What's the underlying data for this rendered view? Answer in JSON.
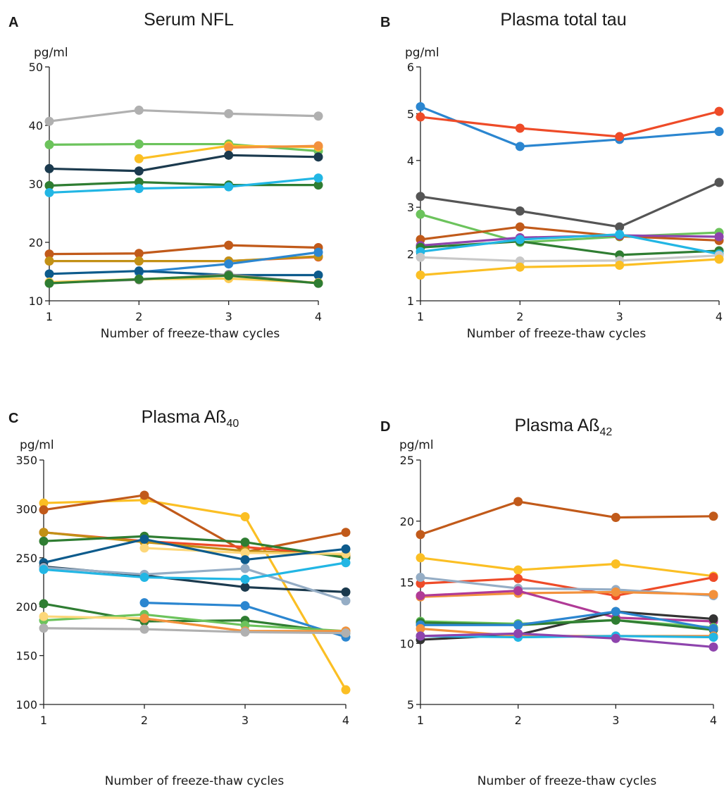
{
  "chart_data": [
    {
      "panel": "A",
      "type": "line",
      "title": "Serum NFL",
      "unit": "pg/ml",
      "xlabel": "Number of freeze-thaw cycles",
      "x": [
        1,
        2,
        3,
        4
      ],
      "xticks": [
        "1",
        "2",
        "3",
        "4"
      ],
      "ylim": [
        10,
        50
      ],
      "yticks": [
        "10",
        "20",
        "30",
        "40",
        "50"
      ],
      "series": [
        {
          "color": "#b0b0b0",
          "values": [
            40.7,
            42.6,
            42.0,
            41.6
          ]
        },
        {
          "color": "#6cc35c",
          "values": [
            36.7,
            36.8,
            36.8,
            35.6
          ]
        },
        {
          "color": "#fbbf24",
          "values": [
            null,
            34.3,
            36.5,
            36.3
          ]
        },
        {
          "color": "#f2913d",
          "values": [
            null,
            null,
            36.2,
            36.5
          ]
        },
        {
          "color": "#1b3a4e",
          "values": [
            32.6,
            32.2,
            34.9,
            34.6
          ]
        },
        {
          "color": "#2f7d32",
          "values": [
            29.7,
            30.3,
            29.8,
            29.8
          ]
        },
        {
          "color": "#22b6e4",
          "values": [
            28.5,
            29.2,
            29.5,
            31.0
          ]
        },
        {
          "color": "#c15a1a",
          "values": [
            18.0,
            18.1,
            19.5,
            19.1
          ]
        },
        {
          "color": "#ee4b28",
          "values": [
            16.8,
            16.8,
            16.8,
            17.5
          ]
        },
        {
          "color": "#c29116",
          "values": [
            16.8,
            16.8,
            16.8,
            17.6
          ]
        },
        {
          "color": "#2b86d0",
          "values": [
            null,
            14.9,
            16.3,
            18.3
          ]
        },
        {
          "color": "#0d5b8c",
          "values": [
            14.6,
            15.1,
            14.4,
            14.4
          ]
        },
        {
          "color": "#888888",
          "values": [
            13.1,
            13.6,
            14.5,
            13.0
          ]
        },
        {
          "color": "#fdcb52",
          "values": [
            13.2,
            13.7,
            13.8,
            13.1
          ]
        },
        {
          "color": "#2f7d32",
          "values": [
            13.0,
            13.7,
            14.3,
            13.0
          ]
        }
      ]
    },
    {
      "panel": "B",
      "type": "line",
      "title": "Plasma total tau",
      "unit": "pg/ml",
      "xlabel": "Number of freeze-thaw cycles",
      "x": [
        1,
        2,
        3,
        4
      ],
      "xticks": [
        "1",
        "2",
        "3",
        "4"
      ],
      "ylim": [
        1,
        6
      ],
      "yticks": [
        "1",
        "2",
        "3",
        "4",
        "5",
        "6"
      ],
      "series": [
        {
          "color": "#2b86d0",
          "values": [
            5.15,
            4.3,
            4.45,
            4.62
          ]
        },
        {
          "color": "#ee4b28",
          "values": [
            4.93,
            4.69,
            4.51,
            5.05
          ]
        },
        {
          "color": "#555555",
          "values": [
            3.23,
            2.92,
            2.58,
            3.53
          ]
        },
        {
          "color": "#6cc35c",
          "values": [
            2.85,
            2.25,
            2.37,
            2.46
          ]
        },
        {
          "color": "#c15a1a",
          "values": [
            2.31,
            2.58,
            2.38,
            2.29
          ]
        },
        {
          "color": "#8e44ad",
          "values": [
            2.18,
            2.35,
            2.4,
            2.37
          ]
        },
        {
          "color": "#2f7d32",
          "values": [
            2.14,
            2.27,
            1.98,
            2.07
          ]
        },
        {
          "color": "#22b6e4",
          "values": [
            2.05,
            2.31,
            2.42,
            2.0
          ]
        },
        {
          "color": "#c8c8c8",
          "values": [
            1.93,
            1.85,
            1.86,
            1.97
          ]
        },
        {
          "color": "#fbbf24",
          "values": [
            1.55,
            1.72,
            1.76,
            1.89
          ]
        }
      ]
    },
    {
      "panel": "C",
      "type": "line",
      "title": "Plasma Aß",
      "title_sub": "40",
      "unit": "pg/ml",
      "xlabel": "Number of freeze-thaw cycles",
      "x": [
        1,
        2,
        3,
        4
      ],
      "xticks": [
        "1",
        "2",
        "3",
        "4"
      ],
      "ylim": [
        100,
        350
      ],
      "yticks": [
        "100",
        "150",
        "200",
        "250",
        "300",
        "350"
      ],
      "series": [
        {
          "color": "#fbbf24",
          "values": [
            306,
            309,
            292,
            115
          ]
        },
        {
          "color": "#c15a1a",
          "values": [
            299,
            314,
            256,
            276
          ]
        },
        {
          "color": "#ee4b28",
          "values": [
            276,
            267,
            261,
            252
          ]
        },
        {
          "color": "#c29116",
          "values": [
            276,
            266,
            257,
            253
          ]
        },
        {
          "color": "#2f7d32",
          "values": [
            267,
            272,
            266,
            250
          ]
        },
        {
          "color": "#fdd77a",
          "values": [
            null,
            260,
            255,
            254
          ]
        },
        {
          "color": "#0d5b8c",
          "values": [
            245,
            269,
            248,
            259
          ]
        },
        {
          "color": "#1b3a4e",
          "values": [
            241,
            232,
            220,
            215
          ]
        },
        {
          "color": "#95adc5",
          "values": [
            240,
            233,
            239,
            206
          ]
        },
        {
          "color": "#22b6e4",
          "values": [
            238,
            230,
            228,
            245
          ]
        },
        {
          "color": "#2b86d0",
          "values": [
            null,
            204,
            201,
            169
          ]
        },
        {
          "color": "#2f7d32",
          "values": [
            203,
            185,
            186,
            173
          ]
        },
        {
          "color": "#6cc35c",
          "values": [
            186,
            192,
            181,
            175
          ]
        },
        {
          "color": "#fdd77a",
          "values": [
            190,
            188,
            175,
            175
          ]
        },
        {
          "color": "#f2913d",
          "values": [
            null,
            188,
            175,
            175
          ]
        },
        {
          "color": "#b0b0b0",
          "values": [
            178,
            177,
            174,
            173
          ]
        }
      ]
    },
    {
      "panel": "D",
      "type": "line",
      "title": "Plasma Aß",
      "title_sub": "42",
      "unit": "pg/ml",
      "xlabel": "Number of freeze-thaw cycles",
      "x": [
        1,
        2,
        3,
        4
      ],
      "xticks": [
        "1",
        "2",
        "3",
        "4"
      ],
      "ylim": [
        5,
        25
      ],
      "yticks": [
        "5",
        "10",
        "15",
        "20",
        "25"
      ],
      "series": [
        {
          "color": "#c15a1a",
          "values": [
            18.9,
            21.6,
            20.3,
            20.4
          ]
        },
        {
          "color": "#fbbf24",
          "values": [
            17.0,
            16.0,
            16.5,
            15.5
          ]
        },
        {
          "color": "#ee4b28",
          "values": [
            14.9,
            15.3,
            13.9,
            15.4
          ]
        },
        {
          "color": "#95adc5",
          "values": [
            15.4,
            14.5,
            14.4,
            13.9
          ]
        },
        {
          "color": "#f2913d",
          "values": [
            13.8,
            14.1,
            14.2,
            14.0
          ]
        },
        {
          "color": "#b03a96",
          "values": [
            13.9,
            14.3,
            12.1,
            11.8
          ]
        },
        {
          "color": "#333333",
          "values": [
            10.3,
            10.7,
            12.6,
            12.0
          ]
        },
        {
          "color": "#6cc35c",
          "values": [
            11.8,
            11.6,
            11.9,
            11.3
          ]
        },
        {
          "color": "#2f7d32",
          "values": [
            11.7,
            11.5,
            11.9,
            11.1
          ]
        },
        {
          "color": "#2b86d0",
          "values": [
            11.5,
            11.5,
            12.6,
            11.2
          ]
        },
        {
          "color": "#f2913d",
          "values": [
            11.2,
            10.6,
            10.6,
            10.6
          ]
        },
        {
          "color": "#22b6e4",
          "values": [
            10.6,
            10.5,
            10.6,
            10.5
          ]
        },
        {
          "color": "#8e44ad",
          "values": [
            10.6,
            10.8,
            10.4,
            9.7
          ]
        }
      ]
    }
  ]
}
